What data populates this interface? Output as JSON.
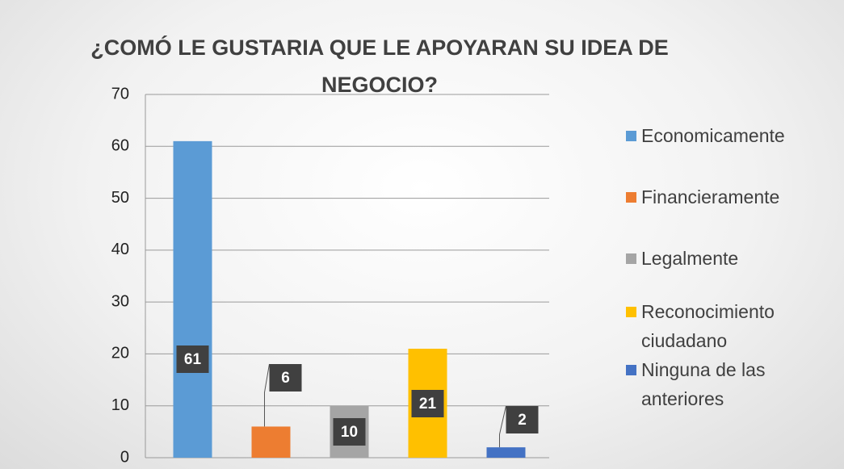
{
  "chart_data": {
    "type": "bar",
    "title": "¿COMÓ LE GUSTARIA QUE LE APOYARAN SU IDEA DE NEGOCIO?",
    "categories": [
      "Economicamente",
      "Financieramente",
      "Legalmente",
      "Reconocimiento ciudadano",
      "Ninguna de las anteriores"
    ],
    "values": [
      61,
      6,
      10,
      21,
      2
    ],
    "colors": [
      "#5b9bd5",
      "#ed7d31",
      "#a5a5a5",
      "#ffc000",
      "#4472c4"
    ],
    "ylim": [
      0,
      70
    ],
    "yticks": [
      0,
      10,
      20,
      30,
      40,
      50,
      60,
      70
    ],
    "grid": true,
    "legend": "right"
  }
}
